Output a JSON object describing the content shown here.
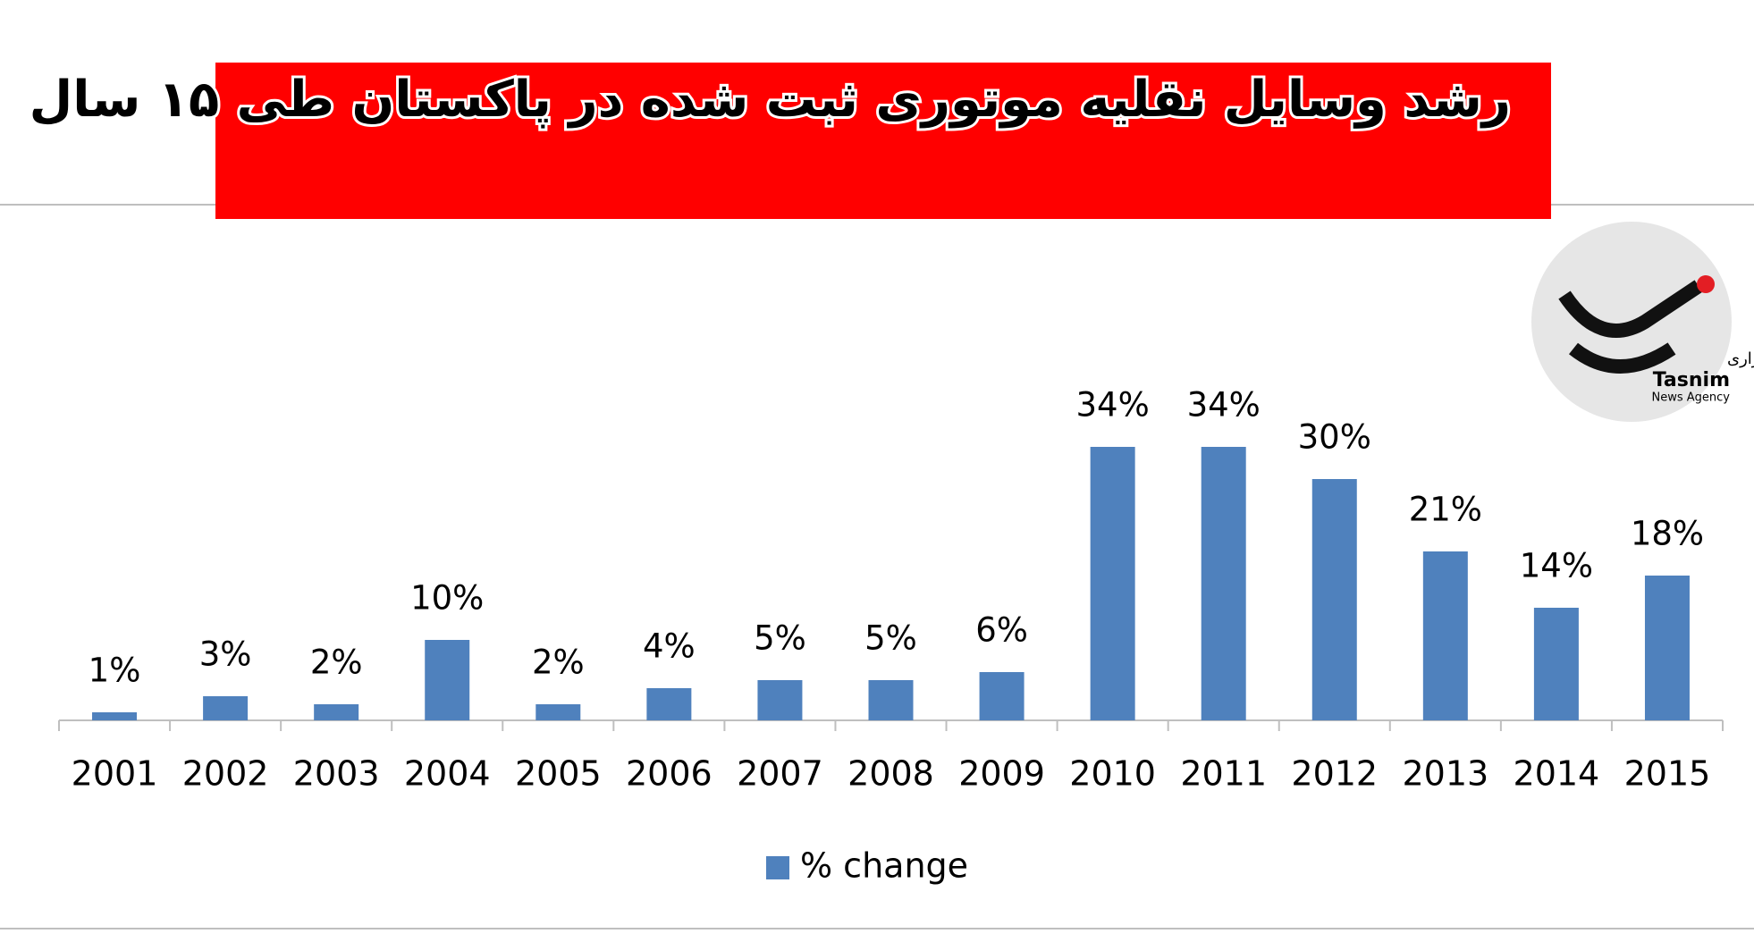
{
  "chart_data": {
    "type": "bar",
    "title": "رشد وسایل نقلیه موتوری ثبت شده در پاکستان طی ۱۵ سال",
    "categories": [
      "2001",
      "2002",
      "2003",
      "2004",
      "2005",
      "2006",
      "2007",
      "2008",
      "2009",
      "2010",
      "2011",
      "2012",
      "2013",
      "2014",
      "2015"
    ],
    "series": [
      {
        "name": "% change",
        "color": "#4f81bd",
        "values": [
          1,
          3,
          2,
          10,
          2,
          4,
          5,
          5,
          6,
          34,
          34,
          30,
          21,
          14,
          18
        ],
        "value_labels": [
          "1%",
          "3%",
          "2%",
          "10%",
          "2%",
          "4%",
          "5%",
          "5%",
          "6%",
          "34%",
          "34%",
          "30%",
          "21%",
          "14%",
          "18%"
        ]
      }
    ],
    "legend": "bottom"
  },
  "logo": {
    "persian": "خبرگزاری",
    "name": "Tasnim",
    "subtitle": "News Agency"
  }
}
